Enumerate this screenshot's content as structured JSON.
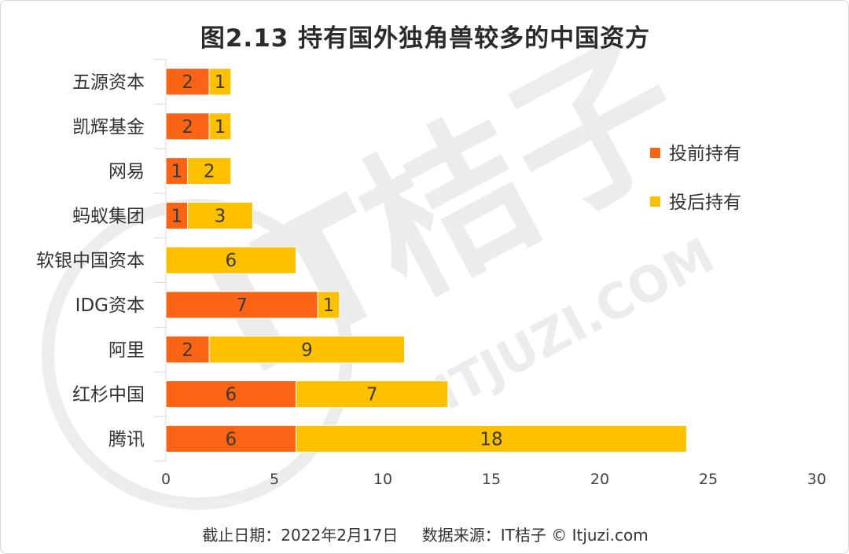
{
  "page": {
    "title": "图2.13  持有国外独角兽较多的中国资方",
    "footer_date": "截止日期：2022年2月17日",
    "footer_source": "数据来源：IT桔子 © Itjuzi.com",
    "watermark_brand": "IT桔子",
    "watermark_url": "ITJUZI.COM"
  },
  "chart_data": {
    "type": "bar",
    "orientation": "horizontal",
    "stacked": true,
    "title": "图2.13  持有国外独角兽较多的中国资方",
    "categories": [
      "五源资本",
      "凯辉基金",
      "网易",
      "蚂蚁集团",
      "软银中国资本",
      "IDG资本",
      "阿里",
      "红杉中国",
      "腾讯"
    ],
    "series": [
      {
        "name": "投前持有",
        "color": "#fa6414",
        "values": [
          2,
          2,
          1,
          1,
          0,
          7,
          2,
          6,
          6
        ]
      },
      {
        "name": "投后持有",
        "color": "#ffc000",
        "values": [
          1,
          1,
          2,
          3,
          6,
          1,
          9,
          7,
          18
        ]
      }
    ],
    "xlim": [
      0,
      30
    ],
    "xticks": [
      0,
      5,
      10,
      15,
      20,
      25,
      30
    ],
    "grid": false,
    "legend_position": "right"
  }
}
